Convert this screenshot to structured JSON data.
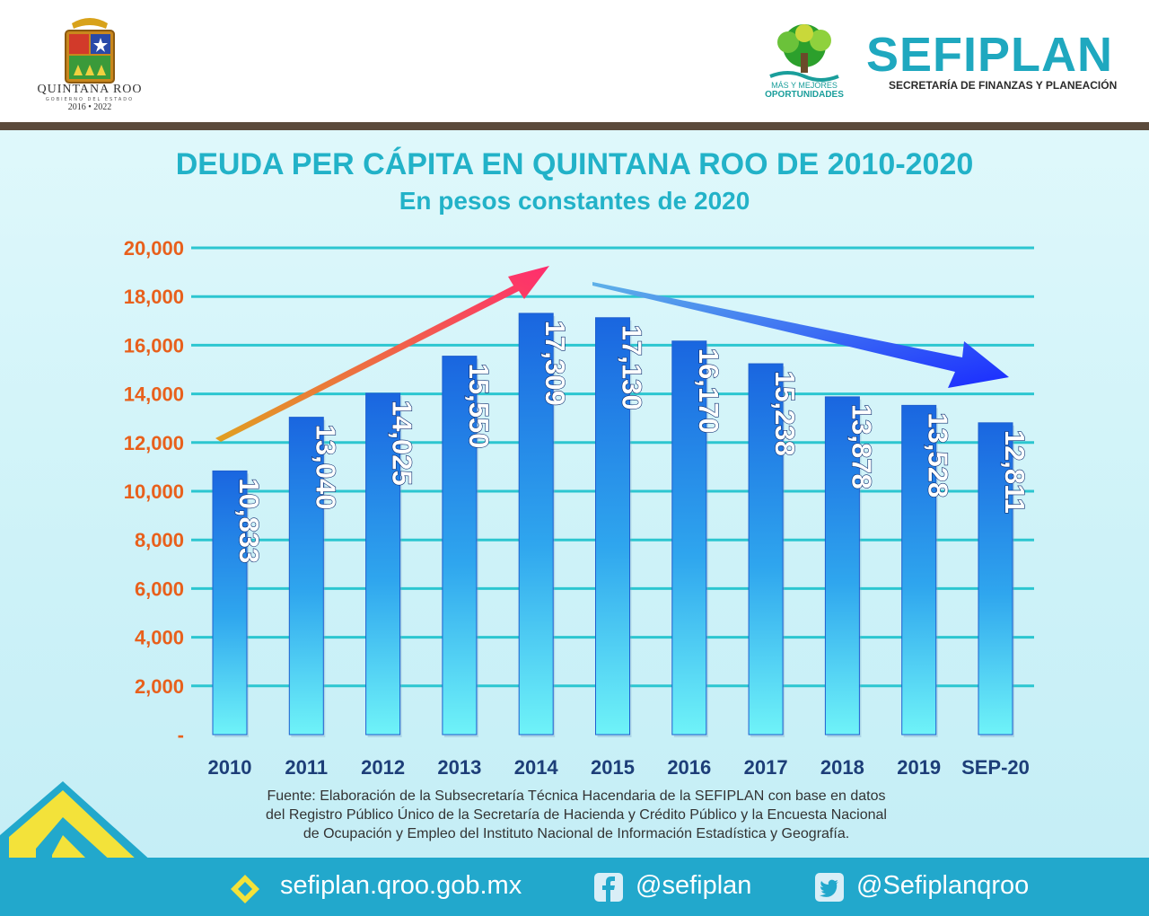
{
  "header": {
    "state_name": "QUINTANA ROO",
    "state_subtitle": "GOBIERNO DEL ESTADO",
    "state_years": "2016 • 2022",
    "mmo_line1": "MÁS Y MEJORES",
    "mmo_line2": "OPORTUNIDADES",
    "sefiplan_title": "SEFIPLAN",
    "sefiplan_subtitle": "SECRETARÍA DE FINANZAS Y PLANEACIÓN"
  },
  "chart_data": {
    "type": "bar",
    "title": "DEUDA PER CÁPITA EN QUINTANA ROO DE 2010-2020",
    "subtitle": "En pesos constantes de 2020",
    "categories": [
      "2010",
      "2011",
      "2012",
      "2013",
      "2014",
      "2015",
      "2016",
      "2017",
      "2018",
      "2019",
      "SEP-20"
    ],
    "values": [
      10833,
      13040,
      14025,
      15550,
      17309,
      17130,
      16170,
      15238,
      13878,
      13528,
      12811
    ],
    "value_labels": [
      "10,833",
      "13,040",
      "14,025",
      "15,550",
      "17,309",
      "17,130",
      "16,170",
      "15,238",
      "13,878",
      "13,528",
      "12,811"
    ],
    "y_ticks": [
      0,
      2000,
      4000,
      6000,
      8000,
      10000,
      12000,
      14000,
      16000,
      18000,
      20000
    ],
    "y_tick_labels": [
      "-",
      "2,000",
      "4,000",
      "6,000",
      "8,000",
      "10,000",
      "12,000",
      "14,000",
      "16,000",
      "18,000",
      "20,000"
    ],
    "ylim": [
      0,
      20000
    ],
    "grid": true,
    "annotations": [
      "rising trend arrow 2010-2014",
      "falling trend arrow 2015-SEP-20"
    ],
    "colors": {
      "bar_top": "#1a66e0",
      "bar_bottom": "#5ff0f8",
      "grid": "#2cc6d0",
      "tick_label": "#e8601c",
      "category_label": "#1d3e78"
    }
  },
  "source_note": [
    "Fuente: Elaboración de la Subsecretaría Técnica Hacendaria de la SEFIPLAN con base en datos",
    "del Registro Público Único de la Secretaría de Hacienda y Crédito Público y la Encuesta Nacional",
    "de Ocupación y Empleo del Instituto Nacional de Información Estadística y Geografía."
  ],
  "footer": {
    "website": "sefiplan.qroo.gob.mx",
    "facebook": "@sefiplan",
    "twitter": "@Sefiplanqroo",
    "icons": [
      "web-diamond-icon",
      "facebook-icon",
      "twitter-icon"
    ]
  }
}
